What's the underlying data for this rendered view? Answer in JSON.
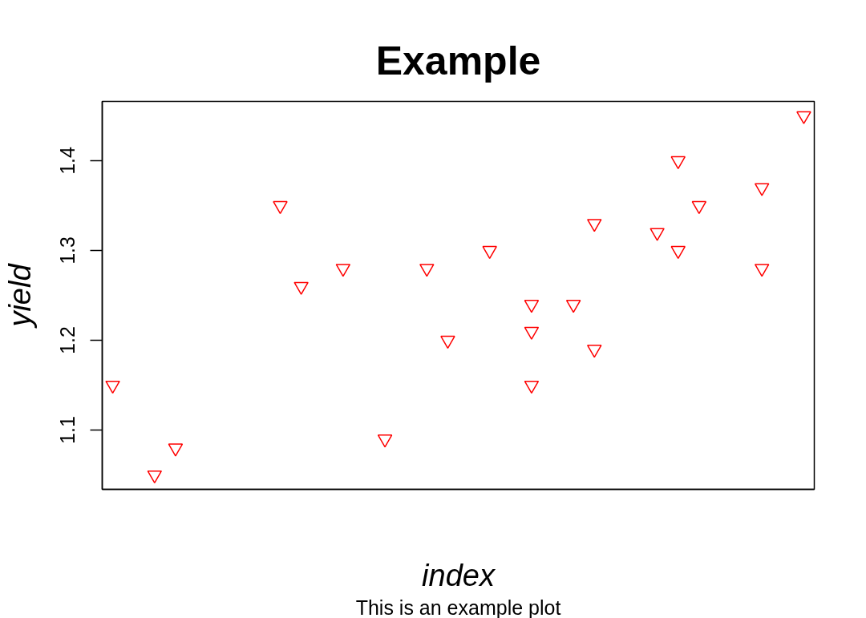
{
  "chart_data": {
    "type": "scatter",
    "title": "Example",
    "subtitle": "This is an example plot",
    "xlabel": "index",
    "ylabel": "yield",
    "categories": [
      null,
      null,
      null,
      null,
      null,
      null,
      null,
      null,
      null,
      null,
      null,
      null,
      null,
      null,
      null,
      null,
      null,
      null,
      null,
      null,
      null,
      null,
      null,
      null,
      null,
      null,
      null,
      null,
      null,
      null,
      null,
      null,
      null,
      null
    ],
    "series": [
      {
        "color": "#ff0000",
        "values": [
          1.15,
          null,
          1.05,
          1.08,
          null,
          null,
          null,
          null,
          1.35,
          1.26,
          null,
          1.28,
          null,
          1.09,
          null,
          1.28,
          1.2,
          null,
          1.3,
          null,
          1.24,
          null,
          1.24,
          1.33,
          null,
          null,
          1.32,
          1.4,
          1.35,
          null,
          null,
          1.37,
          null,
          1.45
        ]
      },
      {
        "color": "#ff0000",
        "values": [
          null,
          null,
          null,
          null,
          null,
          null,
          null,
          null,
          null,
          null,
          null,
          null,
          null,
          null,
          null,
          null,
          null,
          null,
          null,
          null,
          1.21,
          null,
          null,
          1.19,
          null,
          null,
          null,
          1.3,
          null,
          null,
          null,
          1.28,
          null,
          null
        ]
      },
      {
        "color": "#ff0000",
        "values": [
          null,
          null,
          null,
          null,
          null,
          null,
          null,
          null,
          null,
          null,
          null,
          null,
          null,
          null,
          null,
          null,
          null,
          null,
          null,
          null,
          1.15,
          null,
          null,
          null,
          null,
          null,
          null,
          null,
          null,
          null,
          null,
          null,
          null,
          null
        ]
      }
    ],
    "ylim": [
      1.034,
      1.466
    ],
    "yticks": [
      1.1,
      1.2,
      1.3,
      1.4
    ],
    "tick_labels": "y",
    "grid": false,
    "marker": "triangle"
  }
}
